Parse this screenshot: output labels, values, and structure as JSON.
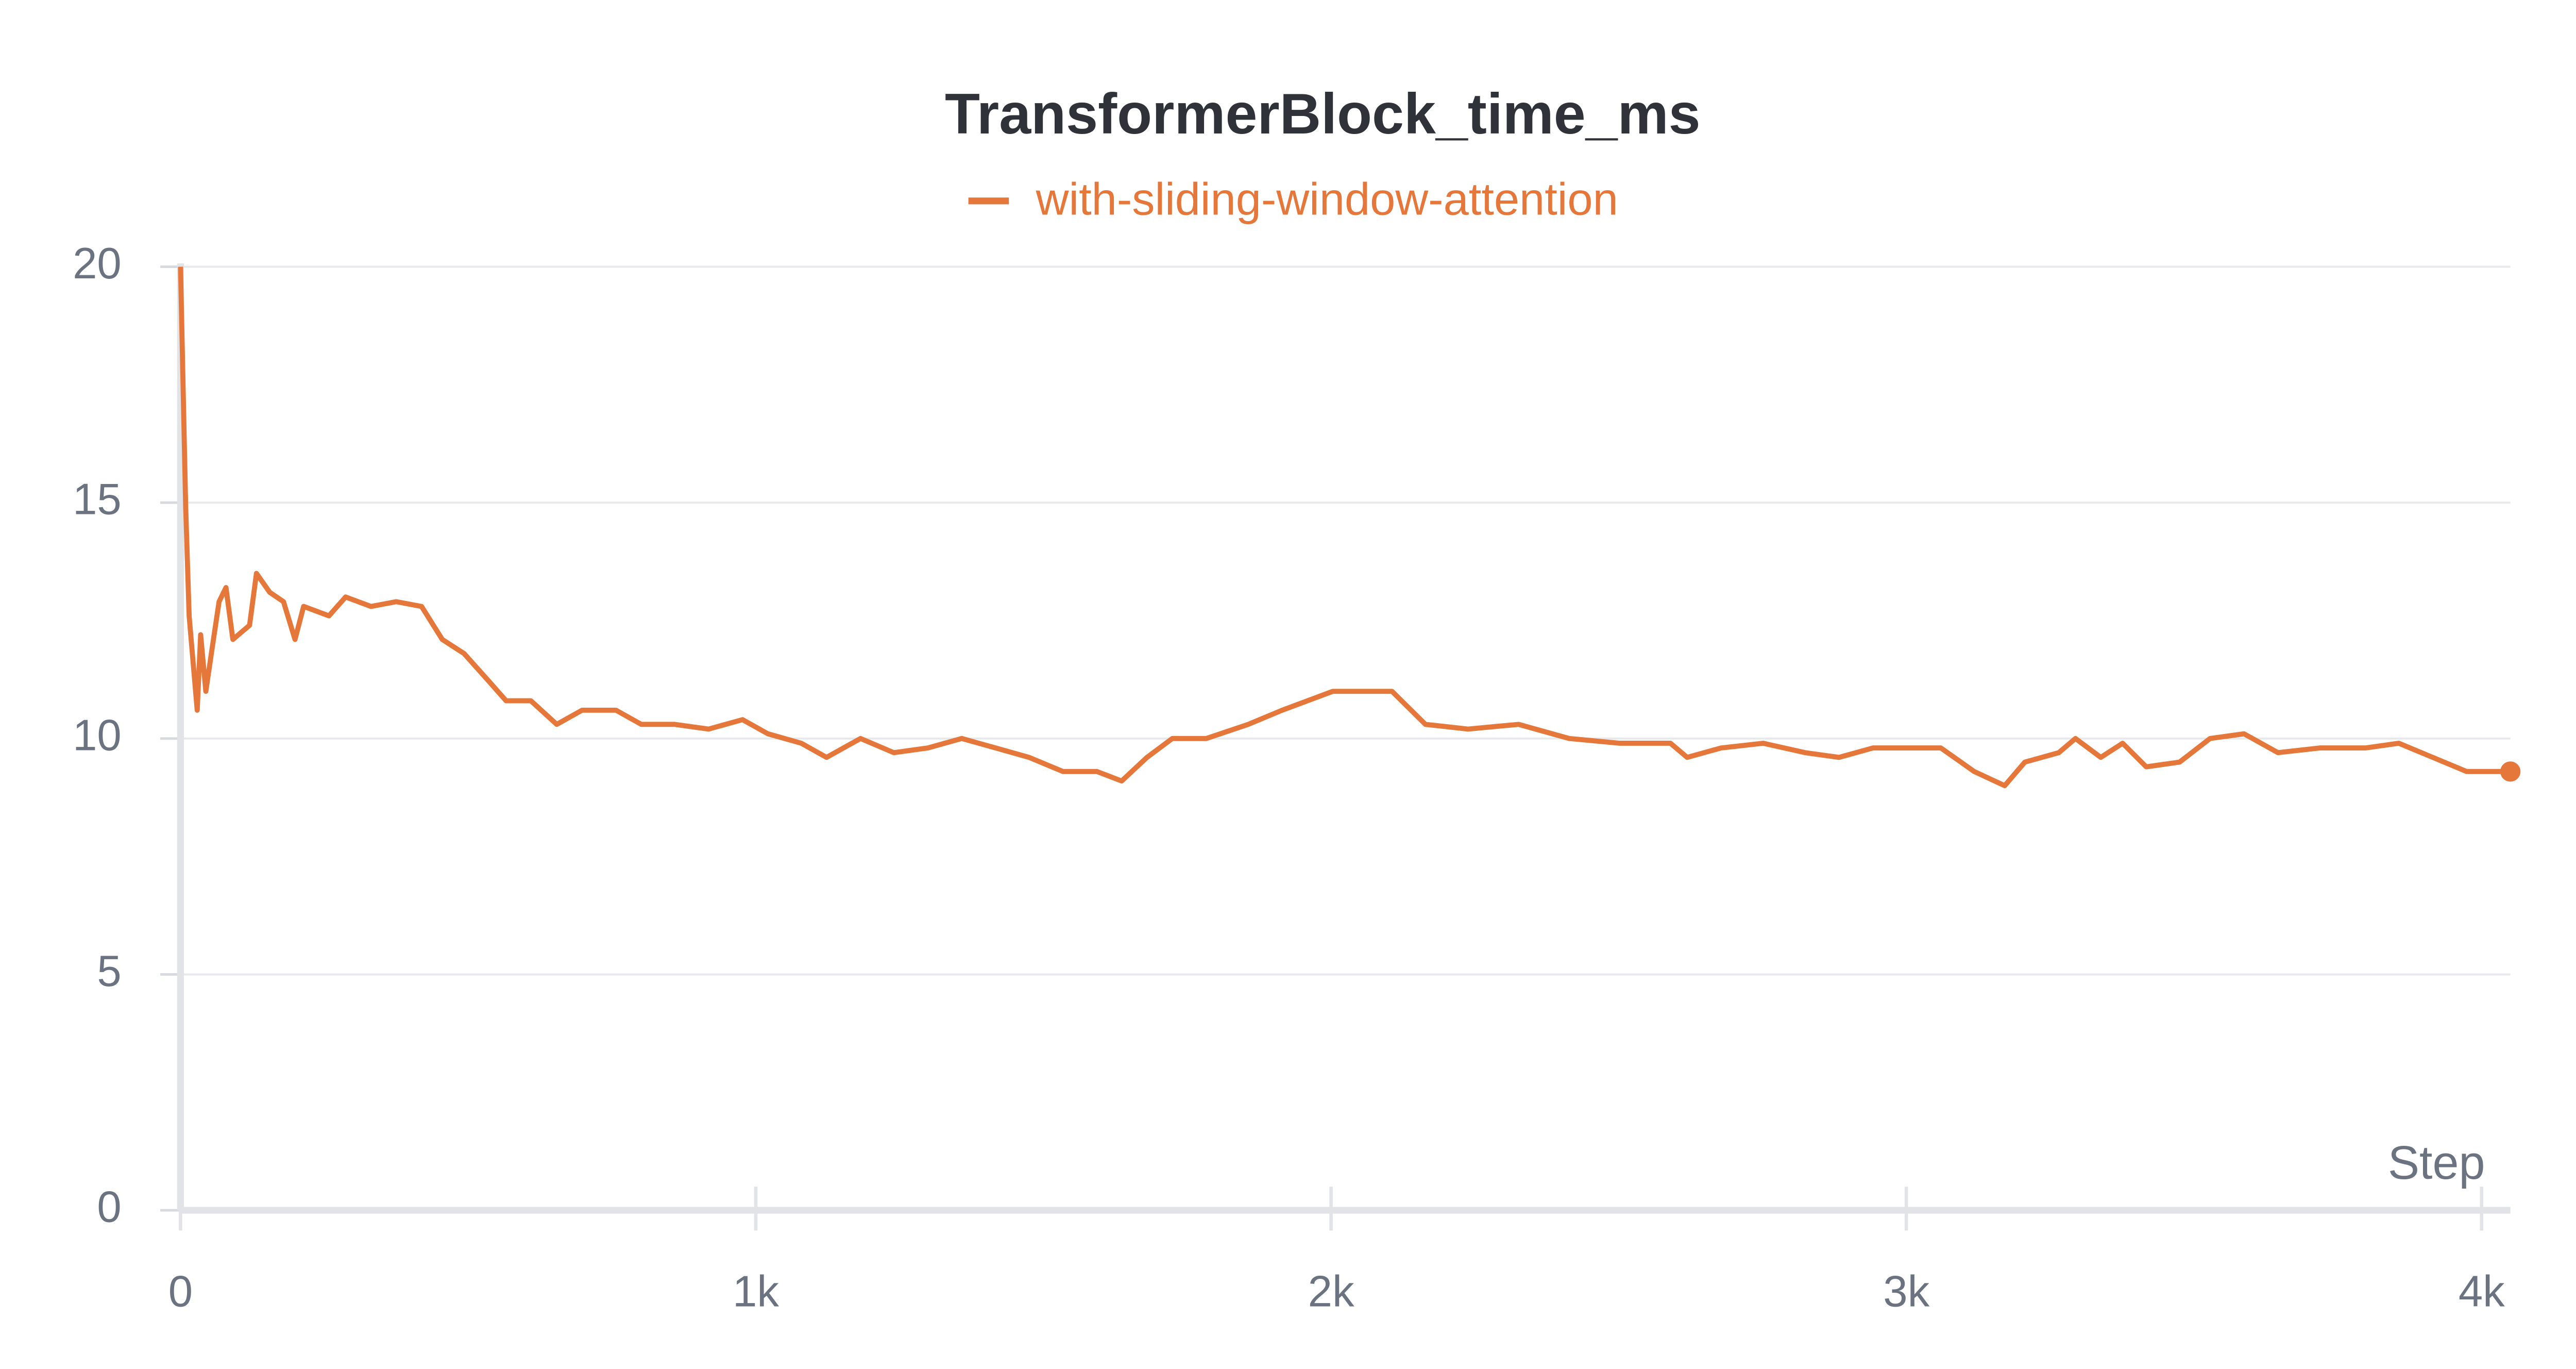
{
  "chart_data": {
    "type": "line",
    "title": "TransformerBlock_time_ms",
    "x_label": "Step",
    "legend": "top",
    "grid": true,
    "x": [
      0,
      9,
      15,
      29,
      35,
      44,
      56,
      67,
      79,
      91,
      120,
      132,
      155,
      179,
      199,
      214,
      258,
      287,
      331,
      375,
      419,
      455,
      493,
      537,
      566,
      609,
      654,
      698,
      757,
      801,
      859,
      918,
      977,
      1021,
      1079,
      1123,
      1182,
      1240,
      1299,
      1358,
      1417,
      1475,
      1534,
      1593,
      1636,
      1680,
      1724,
      1783,
      1856,
      1915,
      2003,
      2062,
      2106,
      2164,
      2238,
      2326,
      2414,
      2502,
      2590,
      2619,
      2678,
      2751,
      2824,
      2883,
      2942,
      3001,
      3060,
      3118,
      3171,
      3206,
      3265,
      3294,
      3338,
      3376,
      3417,
      3475,
      3528,
      3587,
      3646,
      3719,
      3798,
      3856,
      3915,
      3974,
      4050
    ],
    "series": [
      {
        "name": "with-sliding-window-attention",
        "color": "#e5773a",
        "values": [
          20,
          14.9,
          12.6,
          10.6,
          12.2,
          11.0,
          12.0,
          12.9,
          13.2,
          12.1,
          12.4,
          13.5,
          13.1,
          12.9,
          12.1,
          12.8,
          12.6,
          13.0,
          12.8,
          12.9,
          12.8,
          12.1,
          11.8,
          11.2,
          10.8,
          10.8,
          10.3,
          10.6,
          10.6,
          10.3,
          10.3,
          10.2,
          10.4,
          10.1,
          9.9,
          9.6,
          10.0,
          9.7,
          9.8,
          10.0,
          9.8,
          9.6,
          9.3,
          9.3,
          9.1,
          9.6,
          10.0,
          10.0,
          10.3,
          10.6,
          11.0,
          11.0,
          11.0,
          10.3,
          10.2,
          10.3,
          10.0,
          9.9,
          9.9,
          9.6,
          9.8,
          9.9,
          9.7,
          9.6,
          9.8,
          9.8,
          9.8,
          9.3,
          9.0,
          9.5,
          9.7,
          10.0,
          9.6,
          9.9,
          9.4,
          9.5,
          10.0,
          10.1,
          9.7,
          9.8,
          9.8,
          9.9,
          9.6,
          9.3,
          9.3
        ]
      }
    ],
    "xlim": [
      0,
      4050
    ],
    "xticks": [
      0,
      {
        "value": 1000,
        "label": "1k"
      },
      {
        "value": 2000,
        "label": "2k"
      },
      {
        "value": 3000,
        "label": "3k"
      },
      {
        "value": 4000,
        "label": "4k"
      }
    ],
    "ylim": [
      0,
      20
    ],
    "yticks": [
      0,
      5,
      10,
      15,
      20
    ]
  }
}
